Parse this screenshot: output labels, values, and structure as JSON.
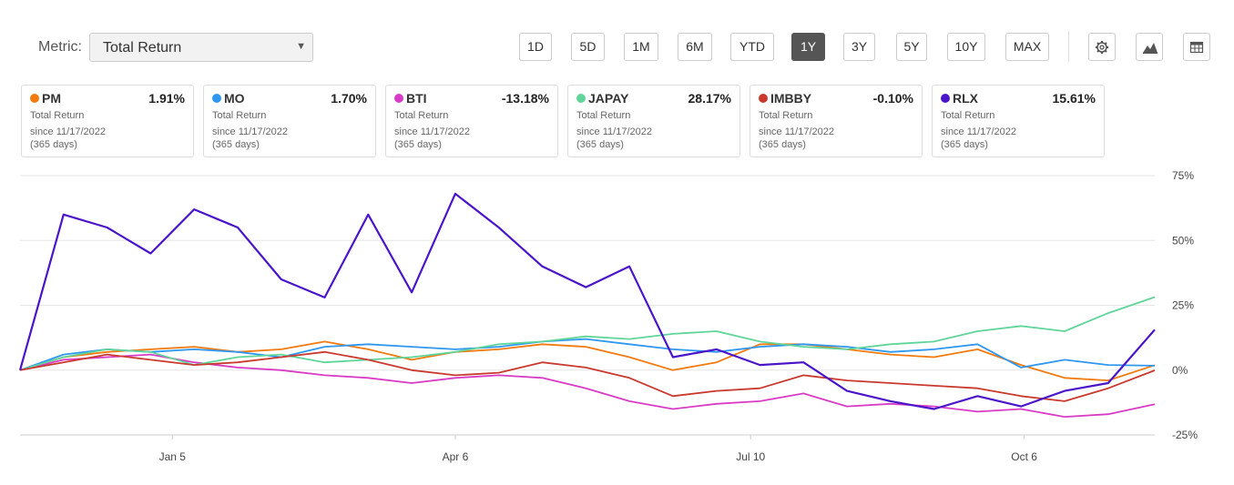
{
  "metric": {
    "label": "Metric:",
    "value": "Total Return"
  },
  "periods": [
    "1D",
    "5D",
    "1M",
    "6M",
    "YTD",
    "1Y",
    "3Y",
    "5Y",
    "10Y",
    "MAX"
  ],
  "active_period": "1Y",
  "toolbar_icons": [
    "gear-icon",
    "mountain-chart-icon",
    "table-icon"
  ],
  "cards": [
    {
      "ticker": "PM",
      "value": "1.91%",
      "color": "#f27a0f",
      "metric": "Total Return",
      "since": "since 11/17/2022",
      "days": "(365 days)"
    },
    {
      "ticker": "MO",
      "value": "1.70%",
      "color": "#2e97f0",
      "metric": "Total Return",
      "since": "since 11/17/2022",
      "days": "(365 days)"
    },
    {
      "ticker": "BTI",
      "value": "-13.18%",
      "color": "#d93bc6",
      "metric": "Total Return",
      "since": "since 11/17/2022",
      "days": "(365 days)"
    },
    {
      "ticker": "JAPAY",
      "value": "28.17%",
      "color": "#5fd59a",
      "metric": "Total Return",
      "since": "since 11/17/2022",
      "days": "(365 days)"
    },
    {
      "ticker": "IMBBY",
      "value": "-0.10%",
      "color": "#c9392d",
      "metric": "Total Return",
      "since": "since 11/17/2022",
      "days": "(365 days)"
    },
    {
      "ticker": "RLX",
      "value": "15.61%",
      "color": "#4a15c9",
      "metric": "Total Return",
      "since": "since 11/17/2022",
      "days": "(365 days)"
    }
  ],
  "chart_data": {
    "type": "line",
    "ylim": [
      -25,
      75
    ],
    "yticks": [
      75,
      50,
      25,
      0,
      -25
    ],
    "ytick_labels": [
      "75%",
      "50%",
      "25%",
      "0%",
      "-25%"
    ],
    "xlim": [
      "2022-11-17",
      "2023-11-17"
    ],
    "xtick_labels": [
      "Jan 5",
      "Apr 6",
      "Jul 10",
      "Oct 6"
    ],
    "xtick_dates": [
      "2023-01-05",
      "2023-04-06",
      "2023-07-10",
      "2023-10-06"
    ],
    "grid": true,
    "x": [
      "2022-11-17",
      "2022-12-01",
      "2022-12-15",
      "2022-12-29",
      "2023-01-12",
      "2023-01-26",
      "2023-02-09",
      "2023-02-23",
      "2023-03-09",
      "2023-03-23",
      "2023-04-06",
      "2023-04-20",
      "2023-05-04",
      "2023-05-18",
      "2023-06-01",
      "2023-06-15",
      "2023-06-29",
      "2023-07-13",
      "2023-07-27",
      "2023-08-10",
      "2023-08-24",
      "2023-09-07",
      "2023-09-21",
      "2023-10-05",
      "2023-10-19",
      "2023-11-02",
      "2023-11-17"
    ],
    "series": [
      {
        "name": "PM",
        "color": "#f27a0f",
        "values": [
          0,
          5,
          7,
          8,
          9,
          7,
          8,
          11,
          8,
          4,
          7,
          8,
          10,
          9,
          5,
          0,
          3,
          10,
          10,
          8,
          6,
          5,
          8,
          2,
          -3,
          -4,
          1.91
        ]
      },
      {
        "name": "MO",
        "color": "#2e97f0",
        "values": [
          0,
          6,
          8,
          7,
          8,
          7,
          5,
          9,
          10,
          9,
          8,
          9,
          11,
          12,
          10,
          8,
          7,
          9,
          10,
          9,
          7,
          8,
          10,
          1,
          4,
          2,
          1.7
        ]
      },
      {
        "name": "BTI",
        "color": "#d93bc6",
        "values": [
          0,
          4,
          5,
          6,
          3,
          1,
          0,
          -2,
          -3,
          -5,
          -3,
          -2,
          -3,
          -7,
          -12,
          -15,
          -13,
          -12,
          -9,
          -14,
          -13,
          -14,
          -16,
          -15,
          -18,
          -17,
          -13.18
        ]
      },
      {
        "name": "JAPAY",
        "color": "#5fd59a",
        "values": [
          0,
          5,
          8,
          7,
          2,
          5,
          6,
          3,
          4,
          5,
          7,
          10,
          11,
          13,
          12,
          14,
          15,
          11,
          9,
          8,
          10,
          11,
          15,
          17,
          15,
          22,
          28.17
        ]
      },
      {
        "name": "IMBBY",
        "color": "#c9392d",
        "values": [
          0,
          3,
          6,
          4,
          2,
          3,
          5,
          7,
          4,
          0,
          -2,
          -1,
          3,
          1,
          -3,
          -10,
          -8,
          -7,
          -2,
          -4,
          -5,
          -6,
          -7,
          -10,
          -12,
          -7,
          -0.1
        ]
      },
      {
        "name": "RLX",
        "color": "#4a15c9",
        "values": [
          0,
          60,
          55,
          45,
          62,
          55,
          35,
          28,
          60,
          30,
          68,
          55,
          40,
          32,
          40,
          5,
          8,
          2,
          3,
          -8,
          -12,
          -15,
          -10,
          -14,
          -8,
          -5,
          15.61
        ]
      }
    ]
  }
}
